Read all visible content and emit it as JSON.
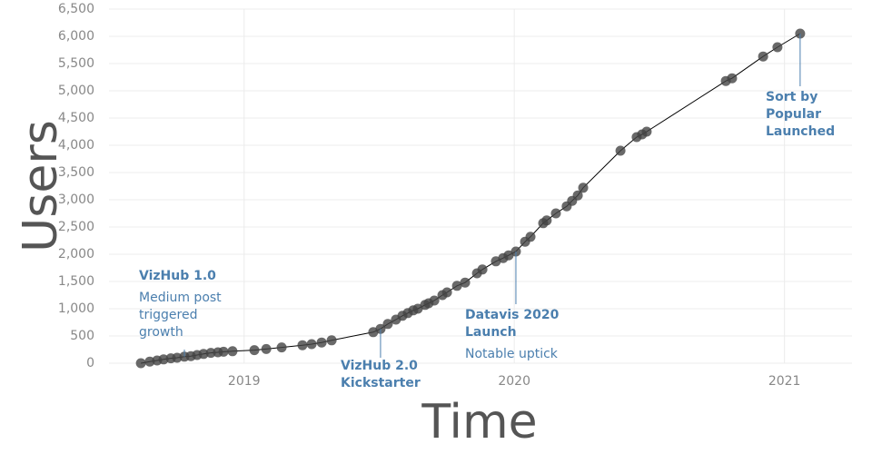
{
  "chart_data": {
    "type": "scatter",
    "x_label": "Time",
    "y_label": "Users",
    "xlim": [
      2018.5,
      2021.25
    ],
    "xticks": [
      2019,
      2020,
      2021
    ],
    "ylim": [
      0,
      6500
    ],
    "yticks": [
      0,
      500,
      {
        "value": 1000,
        "label": "1,000"
      },
      {
        "value": 1500,
        "label": "1,500"
      },
      {
        "value": 2000,
        "label": "2,000"
      },
      {
        "value": 2500,
        "label": "2,500"
      },
      {
        "value": 3000,
        "label": "3,000"
      },
      {
        "value": 3500,
        "label": "3,500"
      },
      {
        "value": 4000,
        "label": "4,000"
      },
      {
        "value": 4500,
        "label": "4,500"
      },
      {
        "value": 5000,
        "label": "5,000"
      },
      {
        "value": 5500,
        "label": "5,500"
      },
      {
        "value": 6000,
        "label": "6,000"
      },
      {
        "value": 6500,
        "label": "6,500"
      }
    ],
    "grid": true,
    "color": "#444444",
    "line_color": "#000000",
    "x": [
      2018.618,
      2018.651,
      2018.678,
      2018.702,
      2018.729,
      2018.752,
      2018.779,
      2018.803,
      2018.826,
      2018.85,
      2018.877,
      2018.903,
      2018.924,
      2018.957,
      2019.038,
      2019.082,
      2019.139,
      2019.216,
      2019.25,
      2019.287,
      2019.324,
      2019.478,
      2019.505,
      2019.532,
      2019.562,
      2019.586,
      2019.606,
      2019.626,
      2019.643,
      2019.67,
      2019.683,
      2019.704,
      2019.734,
      2019.751,
      2019.788,
      2019.818,
      2019.862,
      2019.882,
      2019.932,
      2019.959,
      2019.979,
      2020.006,
      2020.04,
      2020.06,
      2020.107,
      2020.12,
      2020.154,
      2020.194,
      2020.214,
      2020.235,
      2020.255,
      2020.393,
      2020.453,
      2020.473,
      2020.49,
      2020.783,
      2020.806,
      2020.921,
      2020.974,
      2021.058
    ],
    "values": [
      0,
      30,
      50,
      70,
      90,
      100,
      120,
      130,
      150,
      170,
      190,
      200,
      210,
      220,
      240,
      260,
      290,
      330,
      350,
      380,
      420,
      570,
      630,
      720,
      800,
      870,
      920,
      970,
      1000,
      1070,
      1100,
      1150,
      1250,
      1300,
      1420,
      1480,
      1650,
      1720,
      1870,
      1930,
      1980,
      2050,
      2230,
      2320,
      2570,
      2620,
      2750,
      2880,
      2980,
      3080,
      3220,
      3900,
      4150,
      4200,
      4250,
      5180,
      5230,
      5630,
      5800,
      6050
    ],
    "annotations": [
      {
        "title": "VizHub 1.0",
        "note": "Medium post triggered growth",
        "x": 2018.779,
        "y": 120
      },
      {
        "title": "VizHub 2.0 Kickstarter",
        "x": 2019.505,
        "y": 630
      },
      {
        "title": "Datavis 2020 Launch",
        "note": "Notable uptick",
        "x": 2020.006,
        "y": 2050
      },
      {
        "title": "Sort by Popular Launched",
        "x": 2021.058,
        "y": 6050
      }
    ]
  }
}
